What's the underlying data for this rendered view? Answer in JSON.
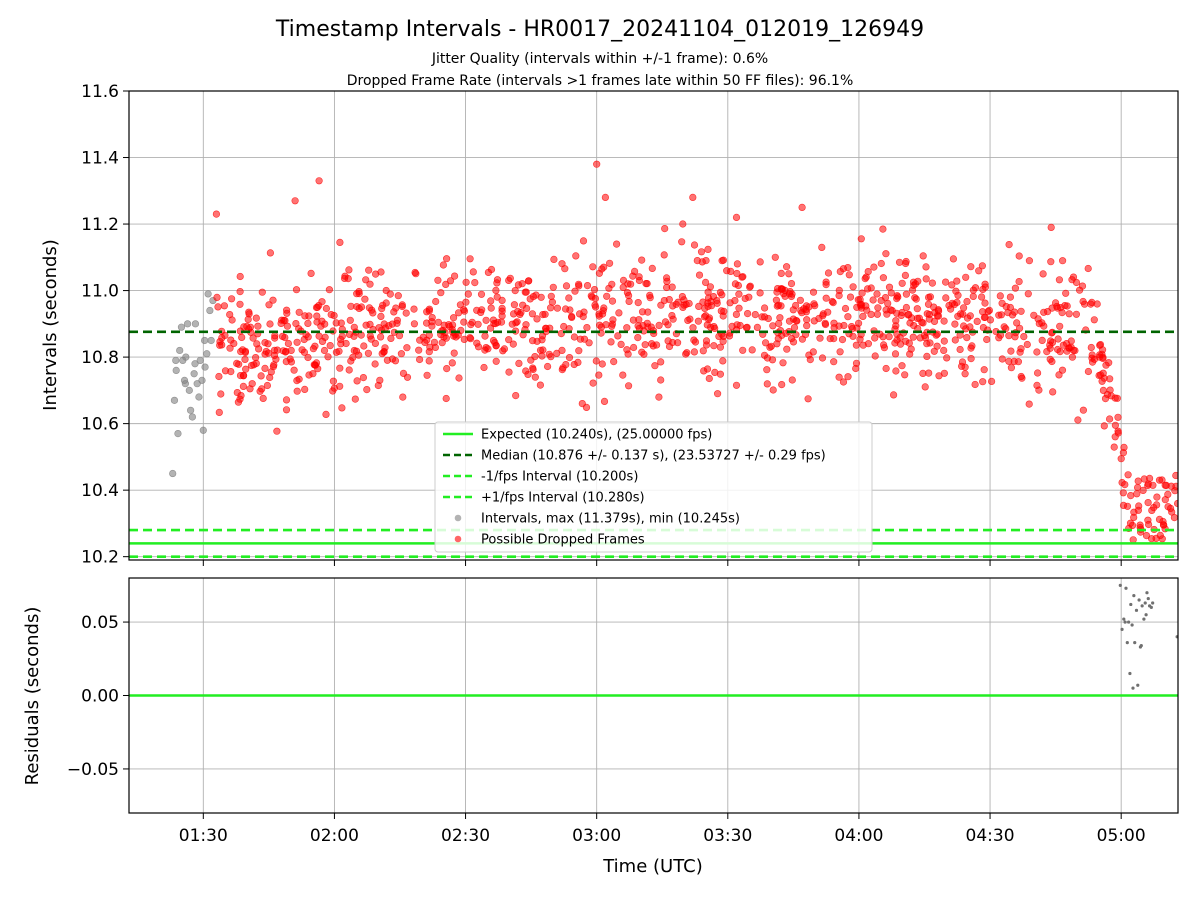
{
  "chart_data": [
    {
      "type": "scatter",
      "title": "Timestamp Intervals - HR0017_20241104_012019_126949",
      "subtitle_lines": [
        "Jitter Quality (intervals within +/-1 frame): 0.6%",
        "Dropped Frame Rate (intervals >1 frames late within 50 FF files): 96.1%"
      ],
      "xlabel": "",
      "ylabel": "Intervals (seconds)",
      "x_range_minutes_utc": [
        73,
        313
      ],
      "x_tick_labels": [
        "01:30",
        "02:00",
        "02:30",
        "03:00",
        "03:30",
        "04:00",
        "04:30",
        "05:00"
      ],
      "x_tick_minutes": [
        90,
        120,
        150,
        180,
        210,
        240,
        270,
        300
      ],
      "ylim": [
        10.19,
        11.6
      ],
      "y_ticks": [
        10.2,
        10.4,
        10.6,
        10.8,
        11.0,
        11.2,
        11.4,
        11.6
      ],
      "y_tick_labels": [
        "10.2",
        "10.4",
        "10.6",
        "10.8",
        "11.0",
        "11.2",
        "11.4",
        "11.6"
      ],
      "grid": true,
      "legend_placement": "bottom-center",
      "reference_lines": [
        {
          "name": "Expected (10.240s), (25.00000 fps)",
          "y": 10.24,
          "color": "#22ee22",
          "style": "solid"
        },
        {
          "name": "Median (10.876 +/- 0.137 s), (23.53727 +/- 0.29 fps)",
          "y": 10.876,
          "color": "#006400",
          "style": "dashed"
        },
        {
          "name": "-1/fps Interval (10.200s)",
          "y": 10.2,
          "color": "#22ee22",
          "style": "dashed"
        },
        {
          "name": "+1/fps Interval (10.280s)",
          "y": 10.28,
          "color": "#22ee22",
          "style": "dashed"
        }
      ],
      "series": [
        {
          "name": "Intervals, max (11.379s), min (10.245s)",
          "color": "#808080",
          "points": [
            [
              83,
              10.45
            ],
            [
              83.4,
              10.67
            ],
            [
              83.8,
              10.76
            ],
            [
              84.2,
              10.57
            ],
            [
              84.6,
              10.82
            ],
            [
              85,
              10.89
            ],
            [
              85.3,
              10.79
            ],
            [
              85.7,
              10.73
            ],
            [
              86,
              10.8
            ],
            [
              86.4,
              10.9
            ],
            [
              86.8,
              10.7
            ],
            [
              87.1,
              10.64
            ],
            [
              87.5,
              10.62
            ],
            [
              87.9,
              10.75
            ],
            [
              88.2,
              10.9
            ],
            [
              88.6,
              10.72
            ],
            [
              89,
              10.68
            ],
            [
              89.3,
              10.79
            ],
            [
              89.7,
              10.73
            ],
            [
              90,
              10.58
            ],
            [
              90.4,
              10.77
            ],
            [
              90.8,
              10.81
            ],
            [
              91.1,
              10.99
            ],
            [
              91.5,
              10.94
            ],
            [
              91.8,
              10.85
            ],
            [
              92.2,
              10.97
            ],
            [
              83.7,
              10.79
            ],
            [
              85.9,
              10.72
            ],
            [
              88.1,
              10.78
            ],
            [
              90.3,
              10.85
            ]
          ]
        },
        {
          "name": "Possible Dropped Frames",
          "color": "#ff0000",
          "generator": {
            "x_range_minutes": [
              92.5,
              301
            ],
            "count": 1150,
            "baseline_knots": [
              [
                92,
                10.8
              ],
              [
                120,
                10.85
              ],
              [
                150,
                10.9
              ],
              [
                180,
                10.92
              ],
              [
                210,
                10.93
              ],
              [
                240,
                10.92
              ],
              [
                270,
                10.9
              ],
              [
                291,
                10.86
              ]
            ],
            "spread": 0.13,
            "fall_start_minute": 291,
            "fall_end_minute": 301,
            "fall_end_value": 10.46,
            "tail_x_range_minutes": [
              300,
              313
            ],
            "tail_count": 60,
            "tail_value_range": [
              10.25,
              10.45
            ],
            "seed": 17
          },
          "extreme_points": [
            [
              93,
              11.23
            ],
            [
              111,
              11.27
            ],
            [
              116.5,
              11.33
            ],
            [
              180,
              11.38
            ],
            [
              182,
              11.28
            ],
            [
              202,
              11.28
            ],
            [
              227,
              11.25
            ],
            [
              212,
              11.22
            ],
            [
              284,
              11.19
            ]
          ]
        }
      ]
    },
    {
      "type": "scatter",
      "xlabel": "Time (UTC)",
      "ylabel": "Residuals (seconds)",
      "ylim": [
        -0.08,
        0.08
      ],
      "y_ticks": [
        -0.05,
        0.0,
        0.05
      ],
      "y_tick_labels": [
        "−0.05",
        "0.00",
        "0.05"
      ],
      "grid": true,
      "reference_lines": [
        {
          "y": 0.0,
          "color": "#22ee22",
          "style": "solid"
        }
      ],
      "series": [
        {
          "color": "#707070",
          "points": [
            [
              299.8,
              0.075
            ],
            [
              300.2,
              0.045
            ],
            [
              300.6,
              0.052
            ],
            [
              301.1,
              0.073
            ],
            [
              301.4,
              0.036
            ],
            [
              301.7,
              0.05
            ],
            [
              302,
              0.015
            ],
            [
              302.2,
              0.062
            ],
            [
              302.5,
              0.048
            ],
            [
              302.9,
              0.068
            ],
            [
              303.1,
              0.036
            ],
            [
              303.5,
              0.058
            ],
            [
              303.8,
              0.007
            ],
            [
              304.1,
              0.065
            ],
            [
              304.4,
              0.033
            ],
            [
              304.8,
              0.061
            ],
            [
              305.2,
              0.052
            ],
            [
              305.5,
              0.063
            ],
            [
              305.9,
              0.07
            ],
            [
              306.2,
              0.066
            ],
            [
              306.5,
              0.061
            ],
            [
              306.9,
              0.06
            ],
            [
              307.2,
              0.063
            ],
            [
              300.9,
              0.05
            ],
            [
              302.7,
              0.005
            ],
            [
              304.6,
              0.034
            ],
            [
              305.7,
              0.055
            ],
            [
              312.8,
              0.04
            ]
          ]
        }
      ]
    }
  ]
}
